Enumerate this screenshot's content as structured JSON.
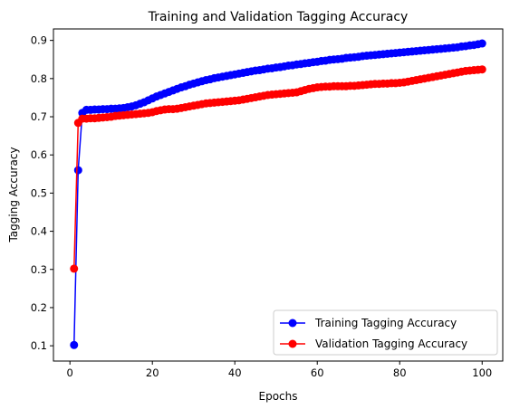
{
  "chart_data": {
    "type": "line",
    "title": "Training and Validation Tagging Accuracy",
    "xlabel": "Epochs",
    "ylabel": "Tagging Accuracy",
    "xlim": [
      -4,
      105
    ],
    "ylim": [
      0.06,
      0.93
    ],
    "xticks": [
      0,
      20,
      40,
      60,
      80,
      100
    ],
    "yticks": [
      0.1,
      0.2,
      0.3,
      0.4,
      0.5,
      0.6,
      0.7,
      0.8,
      0.9
    ],
    "grid": false,
    "legend_position": "lower-right",
    "x": [
      1,
      2,
      3,
      4,
      5,
      6,
      7,
      8,
      9,
      10,
      11,
      12,
      13,
      14,
      15,
      16,
      17,
      18,
      19,
      20,
      21,
      22,
      23,
      24,
      25,
      26,
      27,
      28,
      29,
      30,
      31,
      32,
      33,
      34,
      35,
      36,
      37,
      38,
      39,
      40,
      41,
      42,
      43,
      44,
      45,
      46,
      47,
      48,
      49,
      50,
      51,
      52,
      53,
      54,
      55,
      56,
      57,
      58,
      59,
      60,
      61,
      62,
      63,
      64,
      65,
      66,
      67,
      68,
      69,
      70,
      71,
      72,
      73,
      74,
      75,
      76,
      77,
      78,
      79,
      80,
      81,
      82,
      83,
      84,
      85,
      86,
      87,
      88,
      89,
      90,
      91,
      92,
      93,
      94,
      95,
      96,
      97,
      98,
      99,
      100
    ],
    "series": [
      {
        "name": "Training Tagging Accuracy",
        "color": "#0000ff",
        "marker": "circle",
        "values": [
          0.102,
          0.56,
          0.71,
          0.718,
          0.718,
          0.719,
          0.719,
          0.72,
          0.72,
          0.721,
          0.721,
          0.722,
          0.723,
          0.725,
          0.727,
          0.73,
          0.734,
          0.738,
          0.743,
          0.748,
          0.753,
          0.757,
          0.761,
          0.765,
          0.769,
          0.773,
          0.777,
          0.78,
          0.784,
          0.787,
          0.79,
          0.793,
          0.796,
          0.798,
          0.801,
          0.803,
          0.805,
          0.807,
          0.809,
          0.811,
          0.813,
          0.815,
          0.817,
          0.819,
          0.821,
          0.822,
          0.824,
          0.826,
          0.827,
          0.829,
          0.83,
          0.832,
          0.834,
          0.835,
          0.837,
          0.838,
          0.84,
          0.841,
          0.843,
          0.844,
          0.846,
          0.847,
          0.849,
          0.85,
          0.851,
          0.852,
          0.854,
          0.855,
          0.856,
          0.857,
          0.859,
          0.86,
          0.861,
          0.862,
          0.863,
          0.864,
          0.865,
          0.866,
          0.867,
          0.868,
          0.869,
          0.87,
          0.871,
          0.872,
          0.873,
          0.874,
          0.875,
          0.876,
          0.877,
          0.878,
          0.879,
          0.88,
          0.881,
          0.882,
          0.884,
          0.885,
          0.887,
          0.888,
          0.89,
          0.892
        ]
      },
      {
        "name": "Validation Tagging Accuracy",
        "color": "#ff0000",
        "marker": "circle",
        "values": [
          0.302,
          0.684,
          0.695,
          0.695,
          0.696,
          0.696,
          0.697,
          0.698,
          0.699,
          0.7,
          0.702,
          0.703,
          0.704,
          0.705,
          0.706,
          0.707,
          0.708,
          0.709,
          0.71,
          0.712,
          0.715,
          0.717,
          0.719,
          0.72,
          0.72,
          0.721,
          0.723,
          0.725,
          0.727,
          0.729,
          0.731,
          0.733,
          0.735,
          0.736,
          0.737,
          0.738,
          0.739,
          0.74,
          0.741,
          0.742,
          0.743,
          0.745,
          0.747,
          0.749,
          0.751,
          0.753,
          0.755,
          0.757,
          0.758,
          0.759,
          0.76,
          0.761,
          0.762,
          0.763,
          0.764,
          0.767,
          0.77,
          0.773,
          0.775,
          0.777,
          0.778,
          0.779,
          0.779,
          0.78,
          0.78,
          0.78,
          0.78,
          0.781,
          0.781,
          0.782,
          0.783,
          0.784,
          0.785,
          0.786,
          0.786,
          0.787,
          0.787,
          0.788,
          0.788,
          0.789,
          0.79,
          0.792,
          0.794,
          0.796,
          0.798,
          0.8,
          0.802,
          0.804,
          0.806,
          0.808,
          0.81,
          0.812,
          0.814,
          0.816,
          0.818,
          0.82,
          0.821,
          0.822,
          0.823,
          0.824
        ]
      }
    ]
  }
}
